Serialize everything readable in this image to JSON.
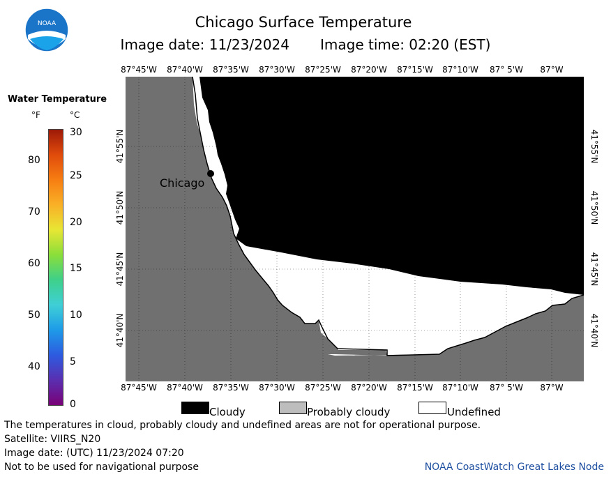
{
  "title": "Chicago Surface Temperature",
  "subtitle_date": "Image date: 11/23/2024",
  "subtitle_time": "Image time: 02:20 (EST)",
  "lon_labels": [
    "87°45'W",
    "87°40'W",
    "87°35'W",
    "87°30'W",
    "87°25'W",
    "87°20'W",
    "87°15'W",
    "87°10'W",
    "87° 5'W",
    "87°W"
  ],
  "lat_labels": [
    "41°55'N",
    "41°50'N",
    "41°45'N",
    "41°40'N"
  ],
  "city_label": "Chicago",
  "legend": {
    "title": "Water Temperature",
    "unit_f": "°F",
    "unit_c": "°C",
    "f_ticks": [
      "80",
      "70",
      "60",
      "50",
      "40"
    ],
    "c_ticks": [
      "30",
      "25",
      "20",
      "15",
      "10",
      "5",
      "0"
    ],
    "gradient_colors": [
      "#7a0177",
      "#5a2fb0",
      "#2d5be0",
      "#1e9be8",
      "#3fcfd6",
      "#3ed08a",
      "#8ade3a",
      "#e8e634",
      "#f9b027",
      "#f77e12",
      "#e04b0c",
      "#9e1a08"
    ]
  },
  "key": {
    "cloudy": "Cloudy",
    "probably_cloudy": "Probably cloudy",
    "undefined": "Undefined",
    "cloudy_color": "#000000",
    "probably_cloudy_color": "#bdbdbd",
    "undefined_color": "#ffffff"
  },
  "land_color": "#707070",
  "footer": {
    "note": "The temperatures in cloud, probably cloudy and undefined areas are not for operational purpose.",
    "satellite": "Satellite: VIIRS_N20",
    "utc_date": "Image date: (UTC) 11/23/2024  07:20",
    "nav_warning": "Not to be used for navigational purpose",
    "credit": "NOAA CoastWatch Great Lakes Node"
  },
  "logo_text": "NOAA"
}
